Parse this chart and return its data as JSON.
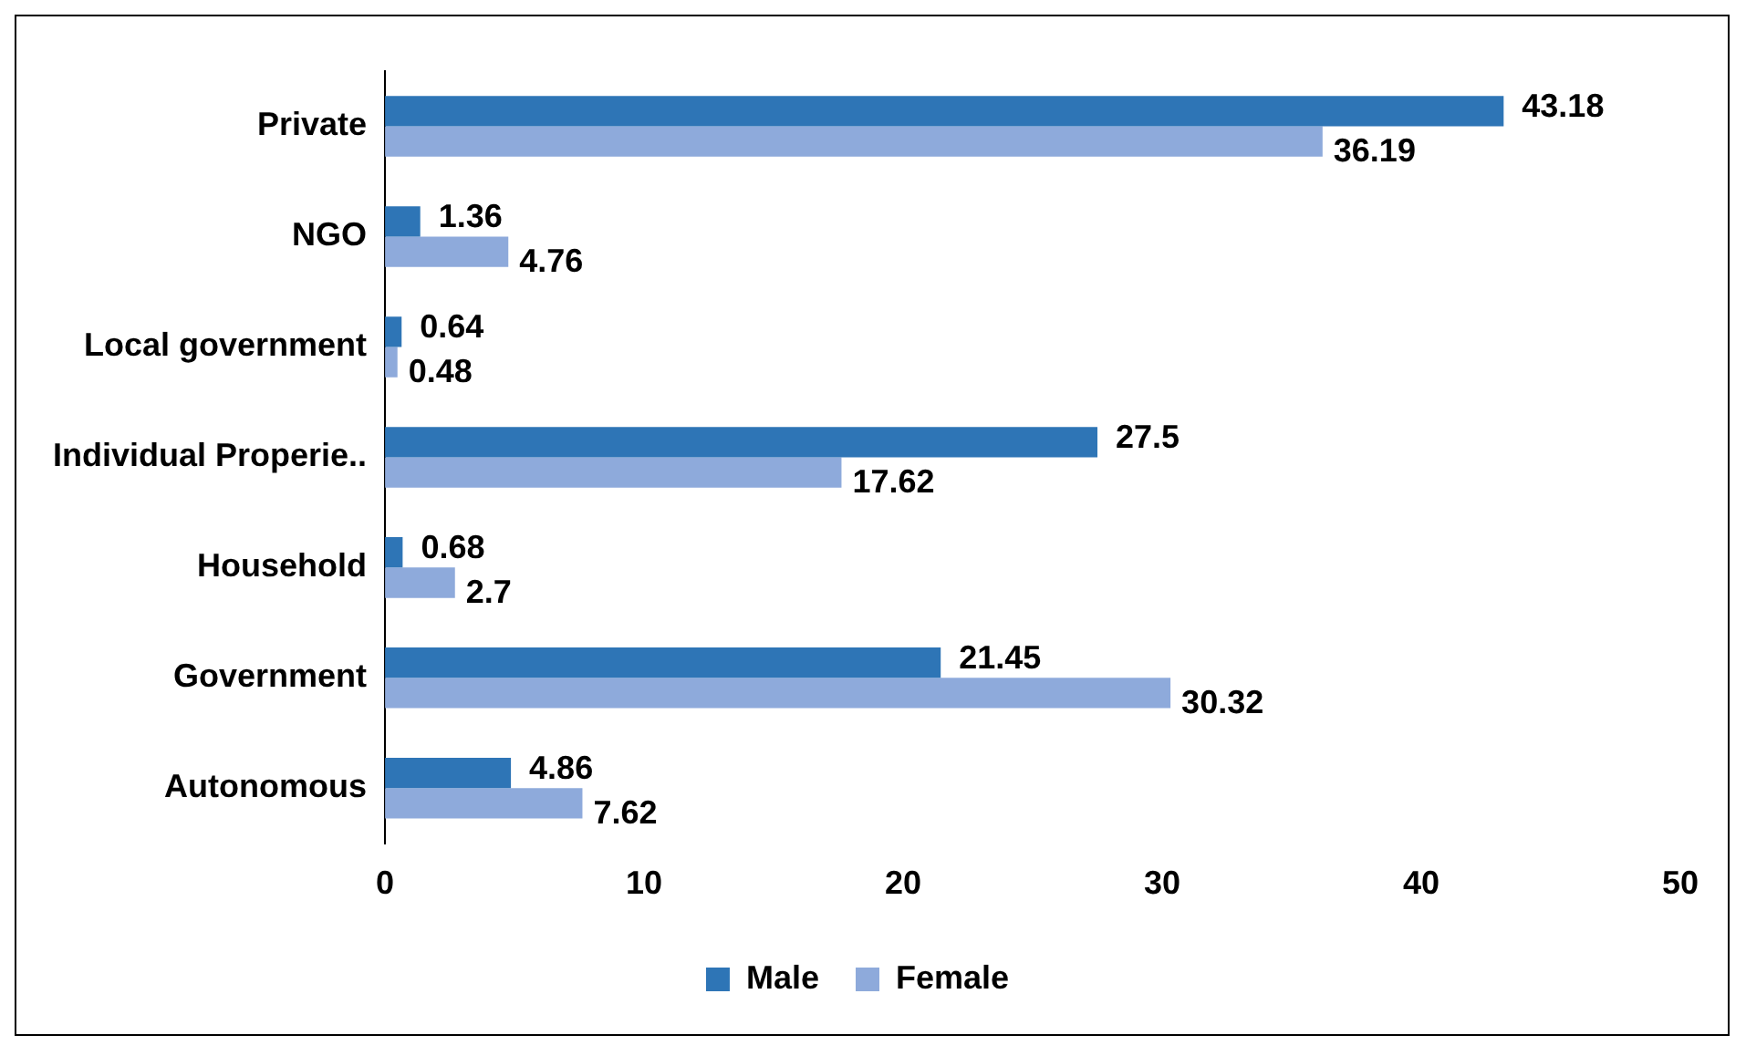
{
  "chart_data": {
    "type": "bar",
    "orientation": "horizontal",
    "categories": [
      "Private",
      "NGO",
      "Local government",
      "Individual Properie..",
      "Household",
      "Government",
      "Autonomous"
    ],
    "series": [
      {
        "name": "Male",
        "color": "#2e75b6",
        "values": [
          43.18,
          1.36,
          0.64,
          27.5,
          0.68,
          21.45,
          4.86
        ]
      },
      {
        "name": "Female",
        "color": "#8eaadb",
        "values": [
          36.19,
          4.76,
          0.48,
          17.62,
          2.7,
          30.32,
          7.62
        ]
      }
    ],
    "xlim": [
      0,
      50
    ],
    "xticks": [
      0,
      10,
      20,
      30,
      40,
      50
    ],
    "grid": false,
    "legend": "bottom",
    "data_labels": true
  }
}
